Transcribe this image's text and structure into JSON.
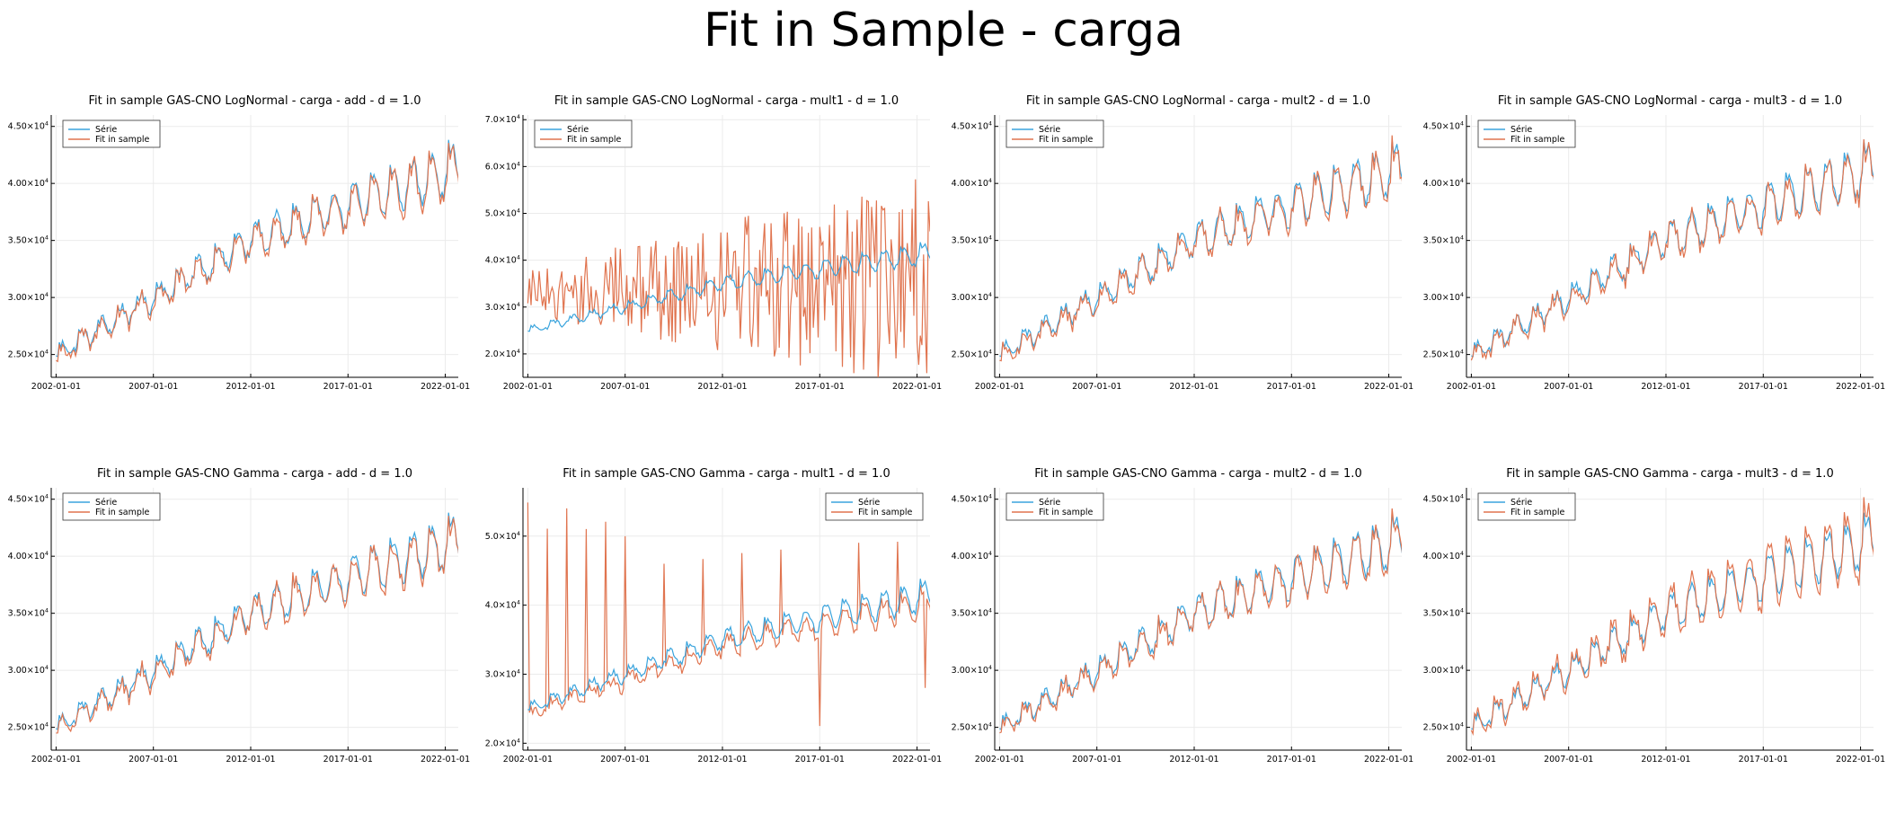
{
  "figure_title": "Fit in Sample - carga",
  "colors": {
    "serie": "#3aa4dd",
    "fit": "#e0744f",
    "grid": "#ebebeb",
    "axis": "#000000"
  },
  "chart_data": [
    {
      "type": "line",
      "title": "Fit in sample GAS-CNO LogNormal - carga - add - d = 1.0",
      "x_ticks": [
        "2002-01-01",
        "2007-01-01",
        "2012-01-01",
        "2017-01-01",
        "2022-01-01"
      ],
      "y_ticks": [
        {
          "mant": "2.50",
          "value": 25000
        },
        {
          "mant": "3.00",
          "value": 30000
        },
        {
          "mant": "3.50",
          "value": 35000
        },
        {
          "mant": "4.00",
          "value": 40000
        },
        {
          "mant": "4.50",
          "value": 45000
        }
      ],
      "xlim": [
        "2001-10-01",
        "2022-09-01"
      ],
      "ylim": [
        23000,
        46000
      ],
      "legend": [
        "Série",
        "Fit in sample"
      ],
      "legend_position": "top-left",
      "fit_mode": "close",
      "grid": true,
      "series_annual_points": {
        "x": [
          "2002-01-01",
          "2007-01-01",
          "2012-01-01",
          "2017-01-01",
          "2022-01-01"
        ],
        "y_level": [
          25000,
          30000,
          35000,
          38000,
          41000
        ]
      }
    },
    {
      "type": "line",
      "title": "Fit in sample GAS-CNO LogNormal - carga - mult1 - d = 1.0",
      "x_ticks": [
        "2002-01-01",
        "2007-01-01",
        "2012-01-01",
        "2017-01-01",
        "2022-01-01"
      ],
      "y_ticks": [
        {
          "mant": "2.0",
          "value": 20000
        },
        {
          "mant": "3.0",
          "value": 30000
        },
        {
          "mant": "4.0",
          "value": 40000
        },
        {
          "mant": "5.0",
          "value": 50000
        },
        {
          "mant": "6.0",
          "value": 60000
        },
        {
          "mant": "7.0",
          "value": 70000
        }
      ],
      "xlim": [
        "2001-10-01",
        "2022-09-01"
      ],
      "ylim": [
        15000,
        71000
      ],
      "legend": [
        "Série",
        "Fit in sample"
      ],
      "legend_position": "top-left",
      "fit_mode": "wild",
      "grid": true,
      "series_annual_points": {
        "x": [
          "2002-01-01",
          "2007-01-01",
          "2012-01-01",
          "2017-01-01",
          "2022-01-01"
        ],
        "y_level": [
          25000,
          30000,
          35000,
          38000,
          41000
        ]
      }
    },
    {
      "type": "line",
      "title": "Fit in sample GAS-CNO LogNormal - carga - mult2 - d = 1.0",
      "x_ticks": [
        "2002-01-01",
        "2007-01-01",
        "2012-01-01",
        "2017-01-01",
        "2022-01-01"
      ],
      "y_ticks": [
        {
          "mant": "2.50",
          "value": 25000
        },
        {
          "mant": "3.00",
          "value": 30000
        },
        {
          "mant": "3.50",
          "value": 35000
        },
        {
          "mant": "4.00",
          "value": 40000
        },
        {
          "mant": "4.50",
          "value": 45000
        }
      ],
      "xlim": [
        "2001-10-01",
        "2022-09-01"
      ],
      "ylim": [
        23000,
        46000
      ],
      "legend": [
        "Série",
        "Fit in sample"
      ],
      "legend_position": "top-left",
      "fit_mode": "close",
      "grid": true,
      "series_annual_points": {
        "x": [
          "2002-01-01",
          "2007-01-01",
          "2012-01-01",
          "2017-01-01",
          "2022-01-01"
        ],
        "y_level": [
          25000,
          30000,
          35000,
          38000,
          41000
        ]
      }
    },
    {
      "type": "line",
      "title": "Fit in sample GAS-CNO LogNormal - carga - mult3 - d = 1.0",
      "x_ticks": [
        "2002-01-01",
        "2007-01-01",
        "2012-01-01",
        "2017-01-01",
        "2022-01-01"
      ],
      "y_ticks": [
        {
          "mant": "2.50",
          "value": 25000
        },
        {
          "mant": "3.00",
          "value": 30000
        },
        {
          "mant": "3.50",
          "value": 35000
        },
        {
          "mant": "4.00",
          "value": 40000
        },
        {
          "mant": "4.50",
          "value": 45000
        }
      ],
      "xlim": [
        "2001-10-01",
        "2022-09-01"
      ],
      "ylim": [
        23000,
        46000
      ],
      "legend": [
        "Série",
        "Fit in sample"
      ],
      "legend_position": "top-left",
      "fit_mode": "close",
      "grid": true,
      "series_annual_points": {
        "x": [
          "2002-01-01",
          "2007-01-01",
          "2012-01-01",
          "2017-01-01",
          "2022-01-01"
        ],
        "y_level": [
          25000,
          30000,
          35000,
          38000,
          41000
        ]
      }
    },
    {
      "type": "line",
      "title": "Fit in sample GAS-CNO Gamma - carga - add - d = 1.0",
      "x_ticks": [
        "2002-01-01",
        "2007-01-01",
        "2012-01-01",
        "2017-01-01",
        "2022-01-01"
      ],
      "y_ticks": [
        {
          "mant": "2.50",
          "value": 25000
        },
        {
          "mant": "3.00",
          "value": 30000
        },
        {
          "mant": "3.50",
          "value": 35000
        },
        {
          "mant": "4.00",
          "value": 40000
        },
        {
          "mant": "4.50",
          "value": 45000
        }
      ],
      "xlim": [
        "2001-10-01",
        "2022-09-01"
      ],
      "ylim": [
        23000,
        46000
      ],
      "legend": [
        "Série",
        "Fit in sample"
      ],
      "legend_position": "top-left",
      "fit_mode": "close",
      "grid": true,
      "series_annual_points": {
        "x": [
          "2002-01-01",
          "2007-01-01",
          "2012-01-01",
          "2017-01-01",
          "2022-01-01"
        ],
        "y_level": [
          25000,
          30000,
          35000,
          38000,
          41000
        ]
      }
    },
    {
      "type": "line",
      "title": "Fit in sample GAS-CNO Gamma - carga - mult1 - d = 1.0",
      "x_ticks": [
        "2002-01-01",
        "2007-01-01",
        "2012-01-01",
        "2017-01-01",
        "2022-01-01"
      ],
      "y_ticks": [
        {
          "mant": "2.0",
          "value": 20000
        },
        {
          "mant": "3.0",
          "value": 30000
        },
        {
          "mant": "4.0",
          "value": 40000
        },
        {
          "mant": "5.0",
          "value": 50000
        }
      ],
      "xlim": [
        "2001-10-01",
        "2022-09-01"
      ],
      "ylim": [
        19000,
        57000
      ],
      "legend": [
        "Série",
        "Fit in sample"
      ],
      "legend_position": "top-right",
      "fit_mode": "spiky",
      "grid": true,
      "series_annual_points": {
        "x": [
          "2002-01-01",
          "2007-01-01",
          "2012-01-01",
          "2017-01-01",
          "2022-01-01"
        ],
        "y_level": [
          25000,
          30000,
          35000,
          38000,
          41000
        ]
      }
    },
    {
      "type": "line",
      "title": "Fit in sample GAS-CNO Gamma - carga - mult2 - d = 1.0",
      "x_ticks": [
        "2002-01-01",
        "2007-01-01",
        "2012-01-01",
        "2017-01-01",
        "2022-01-01"
      ],
      "y_ticks": [
        {
          "mant": "2.50",
          "value": 25000
        },
        {
          "mant": "3.00",
          "value": 30000
        },
        {
          "mant": "3.50",
          "value": 35000
        },
        {
          "mant": "4.00",
          "value": 40000
        },
        {
          "mant": "4.50",
          "value": 45000
        }
      ],
      "xlim": [
        "2001-10-01",
        "2022-09-01"
      ],
      "ylim": [
        23000,
        46000
      ],
      "legend": [
        "Série",
        "Fit in sample"
      ],
      "legend_position": "top-left",
      "fit_mode": "close",
      "grid": true,
      "series_annual_points": {
        "x": [
          "2002-01-01",
          "2007-01-01",
          "2012-01-01",
          "2017-01-01",
          "2022-01-01"
        ],
        "y_level": [
          25000,
          30000,
          35000,
          38000,
          41000
        ]
      }
    },
    {
      "type": "line",
      "title": "Fit in sample GAS-CNO Gamma - carga - mult3 - d = 1.0",
      "x_ticks": [
        "2002-01-01",
        "2007-01-01",
        "2012-01-01",
        "2017-01-01",
        "2022-01-01"
      ],
      "y_ticks": [
        {
          "mant": "2.50",
          "value": 25000
        },
        {
          "mant": "3.00",
          "value": 30000
        },
        {
          "mant": "3.50",
          "value": 35000
        },
        {
          "mant": "4.00",
          "value": 40000
        },
        {
          "mant": "4.50",
          "value": 45000
        }
      ],
      "xlim": [
        "2001-10-01",
        "2022-09-01"
      ],
      "ylim": [
        23000,
        46000
      ],
      "legend": [
        "Série",
        "Fit in sample"
      ],
      "legend_position": "top-left",
      "fit_mode": "close-amplified",
      "grid": true,
      "series_annual_points": {
        "x": [
          "2002-01-01",
          "2007-01-01",
          "2012-01-01",
          "2017-01-01",
          "2022-01-01"
        ],
        "y_level": [
          25000,
          30000,
          35000,
          38000,
          41000
        ]
      }
    }
  ]
}
